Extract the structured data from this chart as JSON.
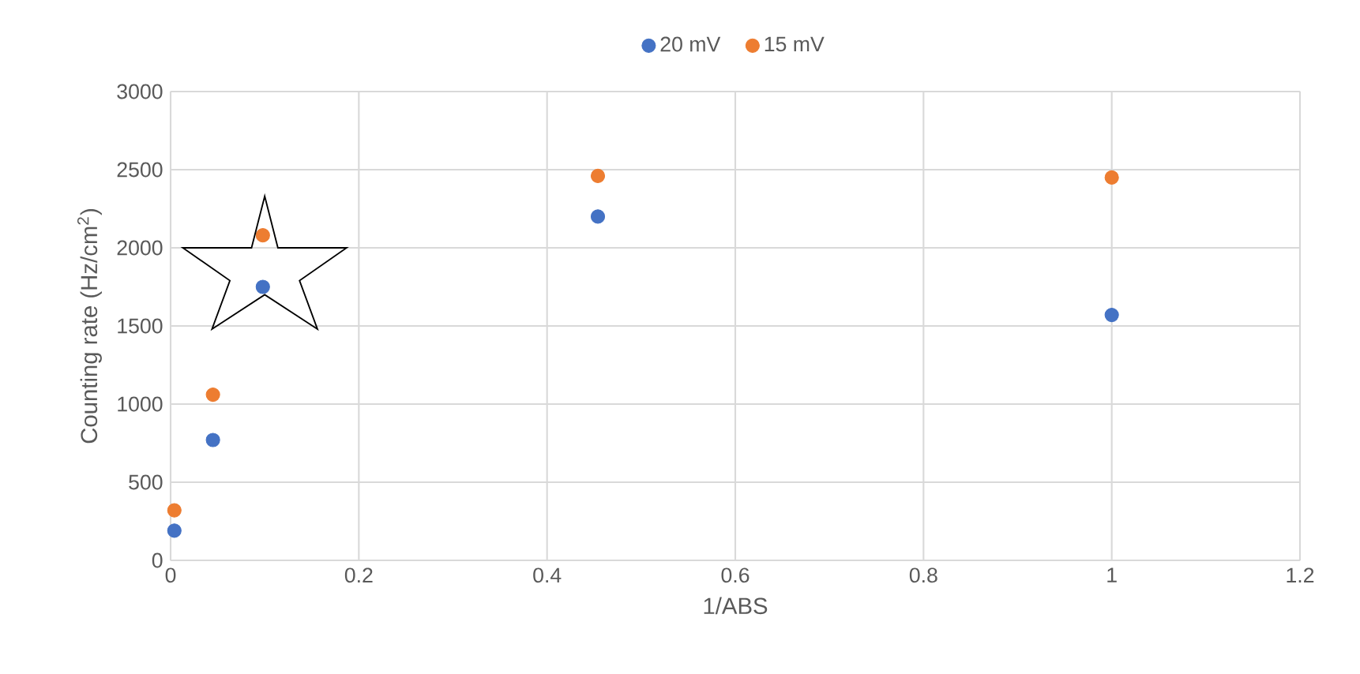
{
  "chart_data": {
    "type": "scatter",
    "xlabel": "1/ABS",
    "ylabel": "Counting rate (Hz/cm$^{2}$)",
    "series": [
      {
        "name": "20 mV",
        "color": "#4472c4",
        "x": [
          0.004,
          0.045,
          0.098,
          0.454,
          1.0
        ],
        "values": [
          190,
          770,
          1750,
          2200,
          1570
        ]
      },
      {
        "name": "15 mV",
        "color": "#ed7d31",
        "x": [
          0.004,
          0.045,
          0.098,
          0.454,
          1.0
        ],
        "values": [
          320,
          1060,
          2080,
          2460,
          2450
        ]
      }
    ],
    "xlim": [
      0,
      1.2
    ],
    "xticks": [
      0,
      0.2,
      0.4,
      0.6,
      0.8,
      1,
      1.2
    ],
    "ylim": [
      0,
      3000
    ],
    "yticks": [
      0,
      500,
      1000,
      1500,
      2000,
      2500,
      3000
    ],
    "grid": true,
    "legend": "top",
    "marker": "circle"
  }
}
